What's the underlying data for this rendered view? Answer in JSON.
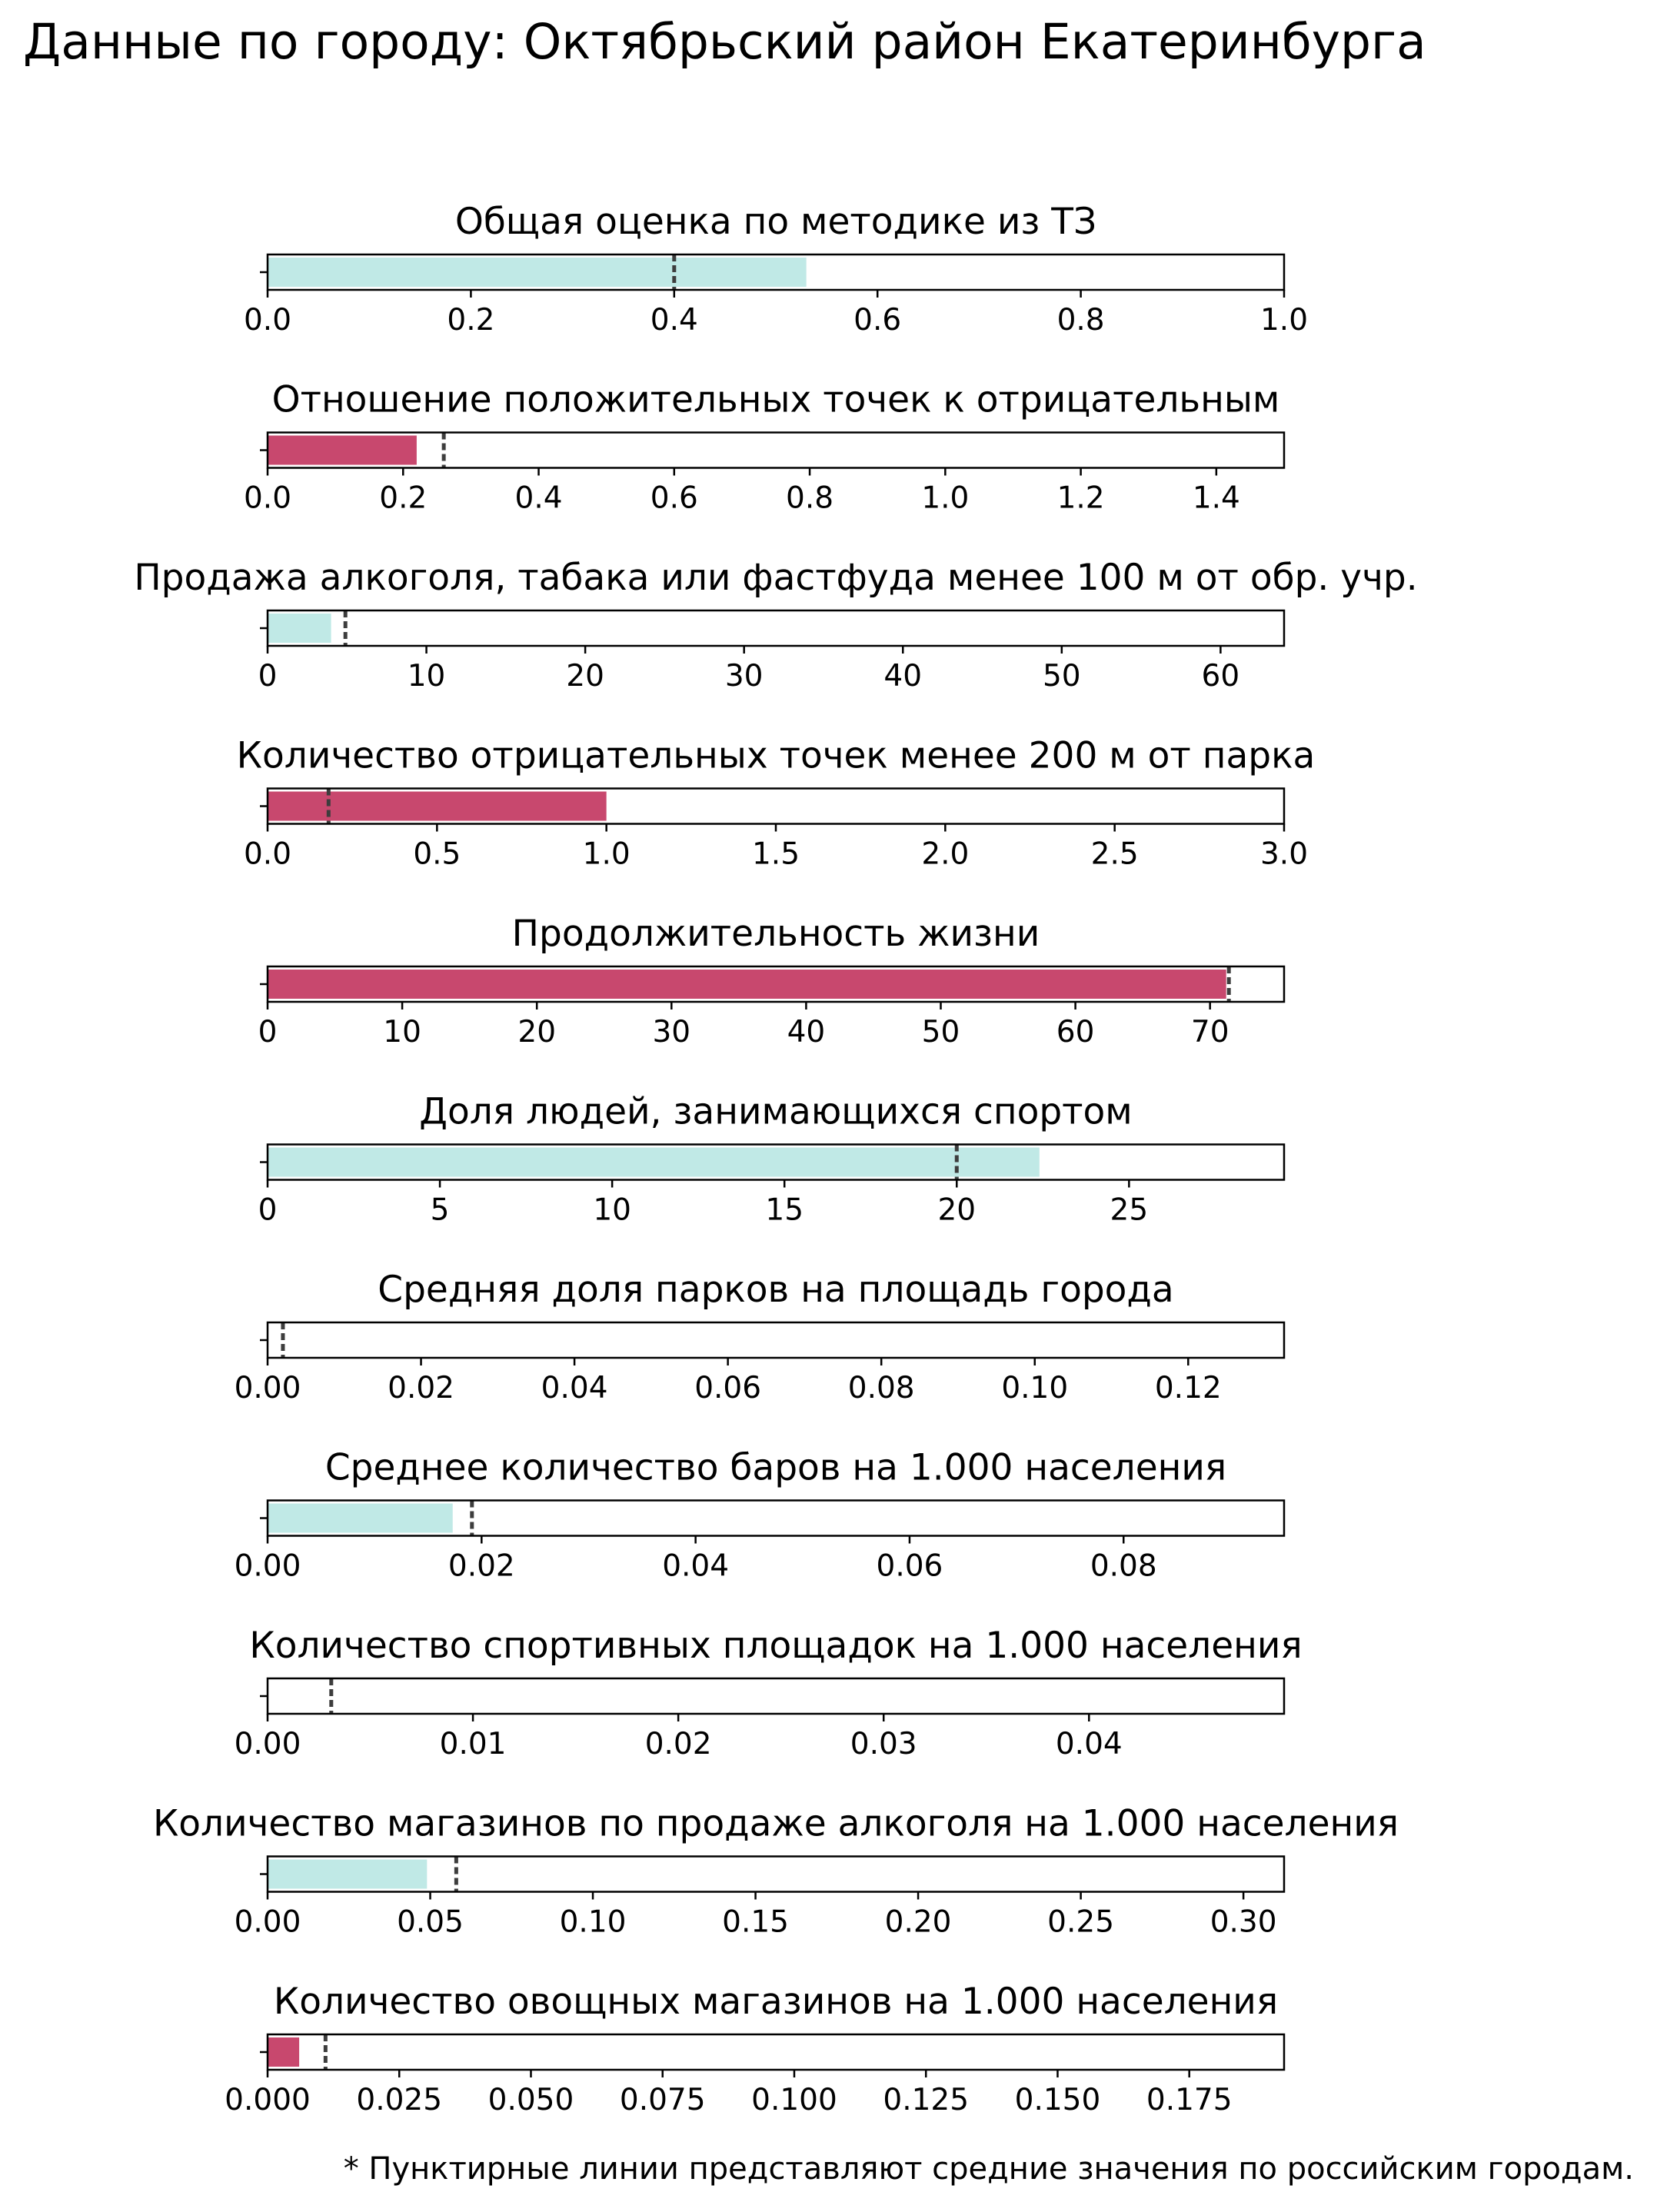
{
  "figure": {
    "title": "Данные по городу: Октябрьский район Екатеринбурга",
    "footnote": "* Пунктирные линии представляют средние значения по российским городам."
  },
  "colors": {
    "good": "#c0e9e6",
    "bad": "#c8486e",
    "reference_line": "#3d3d3d",
    "frame": "#000000"
  },
  "chart_data": [
    {
      "type": "bar",
      "orientation": "horizontal",
      "title": "Общая оценка по методике из ТЗ",
      "value": 0.53,
      "reference": 0.4,
      "xlim": [
        0,
        1.0
      ],
      "ticks": [
        0,
        0.2,
        0.4,
        0.6,
        0.8,
        1.0
      ],
      "tick_labels": [
        "0.0",
        "0.2",
        "0.4",
        "0.6",
        "0.8",
        "1.0"
      ],
      "color": "good"
    },
    {
      "type": "bar",
      "orientation": "horizontal",
      "title": "Отношение положительных точек к отрицательным",
      "value": 0.22,
      "reference": 0.26,
      "xlim": [
        0,
        1.5
      ],
      "ticks": [
        0,
        0.2,
        0.4,
        0.6,
        0.8,
        1.0,
        1.2,
        1.4
      ],
      "tick_labels": [
        "0.0",
        "0.2",
        "0.4",
        "0.6",
        "0.8",
        "1.0",
        "1.2",
        "1.4"
      ],
      "color": "bad"
    },
    {
      "type": "bar",
      "orientation": "horizontal",
      "title": "Продажа алкоголя, табака или фастфуда менее 100 м от обр. учр.",
      "value": 4,
      "reference": 4.9,
      "xlim": [
        0,
        64
      ],
      "ticks": [
        0,
        10,
        20,
        30,
        40,
        50,
        60
      ],
      "tick_labels": [
        "0",
        "10",
        "20",
        "30",
        "40",
        "50",
        "60"
      ],
      "color": "good"
    },
    {
      "type": "bar",
      "orientation": "horizontal",
      "title": "Количество отрицательных точек менее 200 м от парка",
      "value": 1.0,
      "reference": 0.18,
      "xlim": [
        0,
        3.0
      ],
      "ticks": [
        0,
        0.5,
        1.0,
        1.5,
        2.0,
        2.5,
        3.0
      ],
      "tick_labels": [
        "0.0",
        "0.5",
        "1.0",
        "1.5",
        "2.0",
        "2.5",
        "3.0"
      ],
      "color": "bad"
    },
    {
      "type": "bar",
      "orientation": "horizontal",
      "title": "Продолжительность жизни",
      "value": 71.2,
      "reference": 71.4,
      "xlim": [
        0,
        75.5
      ],
      "ticks": [
        0,
        10,
        20,
        30,
        40,
        50,
        60,
        70
      ],
      "tick_labels": [
        "0",
        "10",
        "20",
        "30",
        "40",
        "50",
        "60",
        "70"
      ],
      "color": "bad"
    },
    {
      "type": "bar",
      "orientation": "horizontal",
      "title": "Доля людей, занимающихся спортом",
      "value": 22.4,
      "reference": 20,
      "xlim": [
        0,
        29.5
      ],
      "ticks": [
        0,
        5,
        10,
        15,
        20,
        25
      ],
      "tick_labels": [
        "0",
        "5",
        "10",
        "15",
        "20",
        "25"
      ],
      "color": "good"
    },
    {
      "type": "bar",
      "orientation": "horizontal",
      "title": "Средняя доля парков на площадь города",
      "value": 0,
      "reference": 0.002,
      "xlim": [
        0,
        0.1325
      ],
      "ticks": [
        0,
        0.02,
        0.04,
        0.06,
        0.08,
        0.1,
        0.12
      ],
      "tick_labels": [
        "0.00",
        "0.02",
        "0.04",
        "0.06",
        "0.08",
        "0.10",
        "0.12"
      ],
      "color": "good"
    },
    {
      "type": "bar",
      "orientation": "horizontal",
      "title": "Среднее количество баров на 1.000 населения",
      "value": 0.0173,
      "reference": 0.0191,
      "xlim": [
        0,
        0.095
      ],
      "ticks": [
        0,
        0.02,
        0.04,
        0.06,
        0.08
      ],
      "tick_labels": [
        "0.00",
        "0.02",
        "0.04",
        "0.06",
        "0.08"
      ],
      "color": "good"
    },
    {
      "type": "bar",
      "orientation": "horizontal",
      "title": "Количество спортивных площадок на 1.000 населения",
      "value": 0,
      "reference": 0.0031,
      "xlim": [
        0,
        0.0495
      ],
      "ticks": [
        0,
        0.01,
        0.02,
        0.03,
        0.04
      ],
      "tick_labels": [
        "0.00",
        "0.01",
        "0.02",
        "0.03",
        "0.04"
      ],
      "color": "good"
    },
    {
      "type": "bar",
      "orientation": "horizontal",
      "title": "Количество магазинов по продаже алкоголя на 1.000 населения",
      "value": 0.049,
      "reference": 0.058,
      "xlim": [
        0,
        0.3125
      ],
      "ticks": [
        0,
        0.05,
        0.1,
        0.15,
        0.2,
        0.25,
        0.3
      ],
      "tick_labels": [
        "0.00",
        "0.05",
        "0.10",
        "0.15",
        "0.20",
        "0.25",
        "0.30"
      ],
      "color": "good"
    },
    {
      "type": "bar",
      "orientation": "horizontal",
      "title": "Количество овощных магазинов на 1.000 населения",
      "value": 0.006,
      "reference": 0.011,
      "xlim": [
        0,
        0.193
      ],
      "ticks": [
        0,
        0.025,
        0.05,
        0.075,
        0.1,
        0.125,
        0.15,
        0.175
      ],
      "tick_labels": [
        "0.000",
        "0.025",
        "0.050",
        "0.075",
        "0.100",
        "0.125",
        "0.150",
        "0.175"
      ],
      "color": "bad"
    }
  ]
}
